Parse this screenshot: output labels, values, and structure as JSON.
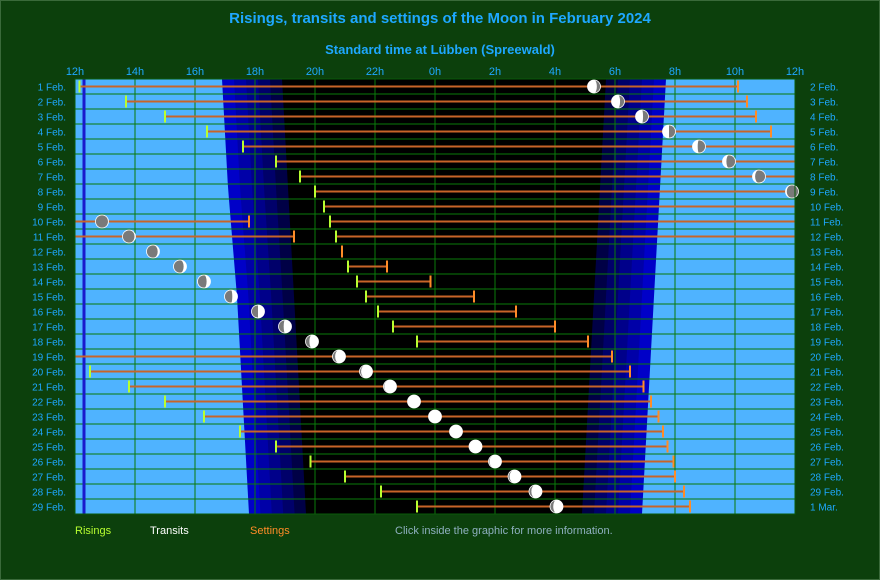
{
  "page": {
    "title": "Risings, transits and settings of the Moon in February 2024",
    "subtitle": "Standard time at Lübben (Spreewald)",
    "hint": "Click inside the graphic for more information."
  },
  "colors": {
    "background": "#0c400c",
    "day_sky": "#4fb3ff",
    "night": "#000000",
    "twilight": "#0000cc",
    "grid": "#0a7a0a",
    "rising": "#b8ff30",
    "setting": "#ff8c28",
    "moon_path": "#c86428",
    "title": "#1ea8ff",
    "axis_text": "#1ea8ff"
  },
  "legend": [
    {
      "label": "Risings",
      "color": "#b8ff30"
    },
    {
      "label": "Transits",
      "color": "#ffffff"
    },
    {
      "label": "Settings",
      "color": "#ff8c28"
    }
  ],
  "chart_data": {
    "type": "timeline",
    "x_axis": {
      "range_hours": [
        12,
        36
      ],
      "tick_labels": [
        "12h",
        "14h",
        "16h",
        "18h",
        "20h",
        "22h",
        "0h",
        "2h",
        "4h",
        "6h",
        "8h",
        "10h",
        "12h"
      ]
    },
    "left_labels": [
      "1 Feb.",
      "2 Feb.",
      "3 Feb.",
      "4 Feb.",
      "5 Feb.",
      "6 Feb.",
      "7 Feb.",
      "8 Feb.",
      "9 Feb.",
      "10 Feb.",
      "11 Feb.",
      "12 Feb.",
      "13 Feb.",
      "14 Feb.",
      "15 Feb.",
      "16 Feb.",
      "17 Feb.",
      "18 Feb.",
      "19 Feb.",
      "20 Feb.",
      "21 Feb.",
      "22 Feb.",
      "23 Feb.",
      "24 Feb.",
      "25 Feb.",
      "26 Feb.",
      "27 Feb.",
      "28 Feb.",
      "29 Feb."
    ],
    "right_labels": [
      "2 Feb.",
      "3 Feb.",
      "4 Feb.",
      "5 Feb.",
      "6 Feb.",
      "7 Feb.",
      "8 Feb.",
      "9 Feb.",
      "10 Feb.",
      "11 Feb.",
      "12 Feb.",
      "13 Feb.",
      "14 Feb.",
      "15 Feb.",
      "16 Feb.",
      "17 Feb.",
      "18 Feb.",
      "19 Feb.",
      "20 Feb.",
      "21 Feb.",
      "22 Feb.",
      "23 Feb.",
      "24 Feb.",
      "25 Feb.",
      "26 Feb.",
      "27 Feb.",
      "28 Feb.",
      "29 Feb.",
      "1 Mar."
    ],
    "twilight_hours": {
      "evening_start": [
        16.9,
        17.1,
        17.4,
        17.6,
        17.8
      ],
      "evening_dark": [
        18.9,
        19.1,
        19.3,
        19.5,
        19.7
      ],
      "morning_dark": [
        5.7,
        5.5,
        5.3,
        5.1,
        4.9
      ],
      "morning_end": [
        7.7,
        7.5,
        7.3,
        7.1,
        6.9
      ]
    },
    "moon": [
      {
        "date": "1 Feb.",
        "rise": 12.15,
        "transit": 17.3,
        "set_prev": null,
        "rise_h": 12.15,
        "transit_h": 29.3,
        "set_h": 34.1,
        "phase": 0.72
      },
      {
        "date": "2 Feb.",
        "rise_h": 13.7,
        "transit_h": 30.1,
        "set_h": 34.4,
        "phase": 0.66
      },
      {
        "date": "3 Feb.",
        "rise_h": 15.0,
        "transit_h": 30.9,
        "set_h": 34.7,
        "phase": 0.58
      },
      {
        "date": "4 Feb.",
        "rise_h": 16.4,
        "transit_h": 31.8,
        "set_h": 35.2,
        "phase": 0.5
      },
      {
        "date": "5 Feb.",
        "rise_h": 17.6,
        "transit_h": 32.8,
        "set_h": null,
        "phase": 0.4
      },
      {
        "date": "6 Feb.",
        "rise_h": 18.7,
        "transit_h": 33.8,
        "set_h": null,
        "phase": 0.3
      },
      {
        "date": "7 Feb.",
        "rise_h": 19.5,
        "transit_h": 34.8,
        "set_h": null,
        "phase": 0.2
      },
      {
        "date": "8 Feb.",
        "rise_h": 20.0,
        "transit_h": 35.9,
        "set_h": null,
        "phase": 0.1
      },
      {
        "date": "9 Feb.",
        "rise_h": 20.3,
        "transit_h": null,
        "set_h": null,
        "phase": null
      },
      {
        "date": "10 Feb.",
        "rise_h": 20.5,
        "transit_h": 12.9,
        "set_h": 17.8,
        "phase": 0.04
      },
      {
        "date": "11 Feb.",
        "rise_h": 20.7,
        "transit_h": 13.8,
        "set_h": 19.3,
        "phase": 0.08
      },
      {
        "date": "12 Feb.",
        "rise_h": 20.9,
        "transit_h": 14.6,
        "set_h": 20.9,
        "phase": 0.14
      },
      {
        "date": "13 Feb.",
        "rise_h": 21.1,
        "transit_h": 15.5,
        "set_h": 22.4,
        "phase": 0.22
      },
      {
        "date": "14 Feb.",
        "rise_h": 21.4,
        "transit_h": 16.3,
        "set_h": 23.85,
        "phase": 0.3
      },
      {
        "date": "15 Feb.",
        "rise_h": 21.7,
        "transit_h": 17.2,
        "set_h": 25.3,
        "phase": 0.4
      },
      {
        "date": "16 Feb.",
        "rise_h": 22.1,
        "transit_h": 18.1,
        "set_h": 26.7,
        "phase": 0.5
      },
      {
        "date": "17 Feb.",
        "rise_h": 22.6,
        "transit_h": 19.0,
        "set_h": 28.0,
        "phase": 0.6
      },
      {
        "date": "18 Feb.",
        "rise_h": 23.4,
        "transit_h": 19.9,
        "set_h": 29.1,
        "phase": 0.7
      },
      {
        "date": "19 Feb.",
        "rise_h": null,
        "transit_h": 20.8,
        "set_h": 29.9,
        "phase": 0.8
      },
      {
        "date": "20 Feb.",
        "rise_h": 12.5,
        "transit_h": 21.7,
        "set_h": 30.5,
        "phase": 0.88
      },
      {
        "date": "21 Feb.",
        "rise_h": 13.8,
        "transit_h": 22.5,
        "set_h": 30.95,
        "phase": 0.94
      },
      {
        "date": "22 Feb.",
        "rise_h": 15.0,
        "transit_h": 23.3,
        "set_h": 31.2,
        "phase": 0.98
      },
      {
        "date": "23 Feb.",
        "rise_h": 16.3,
        "transit_h": 24.0,
        "set_h": 31.45,
        "phase": 1.0
      },
      {
        "date": "24 Feb.",
        "rise_h": 17.5,
        "transit_h": 24.7,
        "set_h": 31.6,
        "phase": 0.99
      },
      {
        "date": "25 Feb.",
        "rise_h": 18.7,
        "transit_h": 25.35,
        "set_h": 31.75,
        "phase": 0.97
      },
      {
        "date": "26 Feb.",
        "rise_h": 19.85,
        "transit_h": 26.0,
        "set_h": 31.95,
        "phase": 0.93
      },
      {
        "date": "27 Feb.",
        "rise_h": 21.0,
        "transit_h": 26.65,
        "set_h": 32.0,
        "phase": 0.88
      },
      {
        "date": "28 Feb.",
        "rise_h": 22.2,
        "transit_h": 27.35,
        "set_h": 32.3,
        "phase": 0.82
      },
      {
        "date": "29 Feb.",
        "rise_h": 23.4,
        "transit_h": 28.05,
        "set_h": 32.5,
        "phase": 0.75
      }
    ]
  }
}
